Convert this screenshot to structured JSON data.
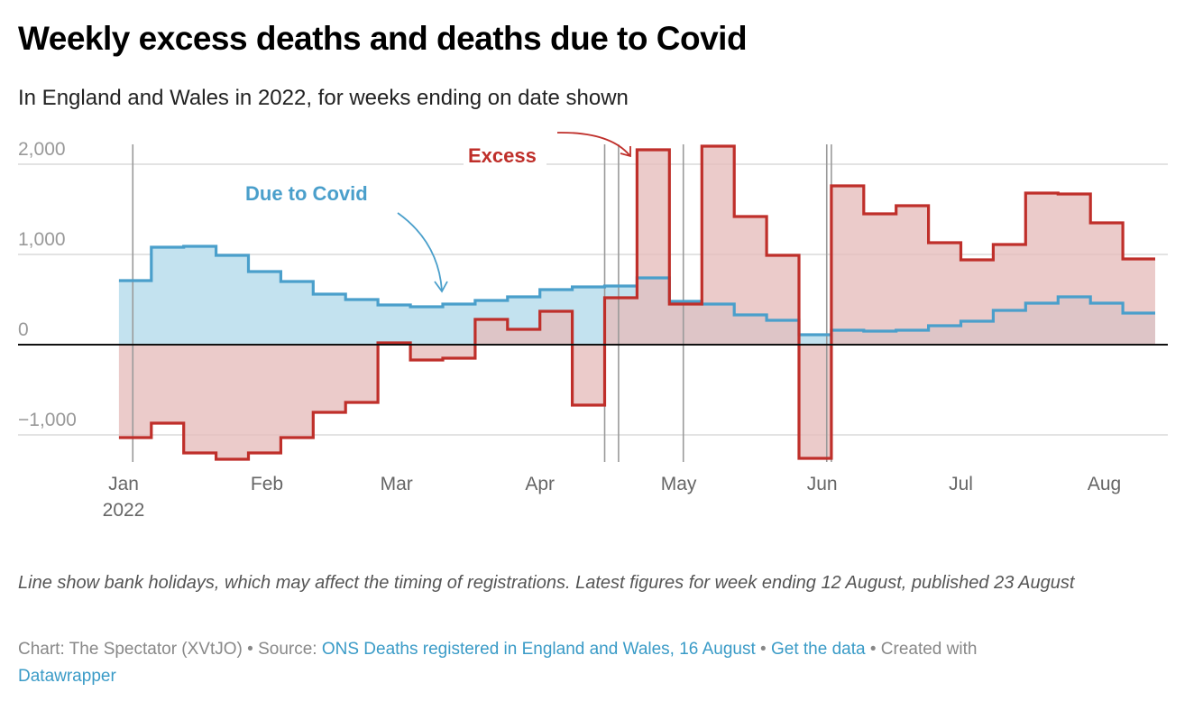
{
  "header": {
    "title": "Weekly excess deaths and deaths due to Covid",
    "subtitle": "In England and Wales in 2022, for weeks ending on date shown"
  },
  "notes": "Line show bank holidays, which may affect the timing of registrations. Latest figures for week ending 12 August, published 23 August",
  "footer": {
    "chart_prefix": "Chart: The Spectator (XVtJO)",
    "separator": " • ",
    "source_prefix": "Source: ",
    "source_link": "ONS Deaths registered in England and Wales, 16 August",
    "get_data_link": "Get the data",
    "created_with": "Created with",
    "datawrapper_link": "Datawrapper"
  },
  "chart_data": {
    "type": "area",
    "interpolation": "step-before",
    "title": "Weekly excess deaths and deaths due to Covid",
    "subtitle": "In England and Wales in 2022, for weeks ending on date shown",
    "xlabel": "",
    "ylabel": "",
    "ylim": [
      -1300,
      2200
    ],
    "grid": true,
    "yticks": [
      {
        "value": 2000,
        "label": "2,000"
      },
      {
        "value": 1000,
        "label": "1,000"
      },
      {
        "value": 0,
        "label": "0"
      },
      {
        "value": -1000,
        "label": "−1,000"
      }
    ],
    "xticks": [
      {
        "date": "2022-01-01",
        "label": "Jan",
        "sublabel": "2022"
      },
      {
        "date": "2022-02-01",
        "label": "Feb"
      },
      {
        "date": "2022-03-01",
        "label": "Mar"
      },
      {
        "date": "2022-04-01",
        "label": "Apr"
      },
      {
        "date": "2022-05-01",
        "label": "May"
      },
      {
        "date": "2022-06-01",
        "label": "Jun"
      },
      {
        "date": "2022-07-01",
        "label": "Jul"
      },
      {
        "date": "2022-08-01",
        "label": "Aug"
      }
    ],
    "x": [
      "2022-01-07",
      "2022-01-14",
      "2022-01-21",
      "2022-01-28",
      "2022-02-04",
      "2022-02-11",
      "2022-02-18",
      "2022-02-25",
      "2022-03-04",
      "2022-03-11",
      "2022-03-18",
      "2022-03-25",
      "2022-04-01",
      "2022-04-08",
      "2022-04-15",
      "2022-04-22",
      "2022-04-29",
      "2022-05-06",
      "2022-05-13",
      "2022-05-20",
      "2022-05-27",
      "2022-06-03",
      "2022-06-10",
      "2022-06-17",
      "2022-06-24",
      "2022-07-01",
      "2022-07-08",
      "2022-07-15",
      "2022-07-22",
      "2022-07-29",
      "2022-08-05",
      "2022-08-12"
    ],
    "series": [
      {
        "name": "Due to Covid",
        "color": "#4a9fcb",
        "fill": "#c3e2ef",
        "values": [
          710,
          1080,
          1090,
          990,
          810,
          700,
          560,
          500,
          440,
          420,
          450,
          490,
          530,
          610,
          640,
          650,
          740,
          480,
          450,
          330,
          270,
          110,
          160,
          150,
          160,
          210,
          260,
          380,
          460,
          530,
          460,
          350
        ]
      },
      {
        "name": "Excess",
        "color": "#bf2f2a",
        "fill": "#e6bcbb",
        "values": [
          -1030,
          -870,
          -1200,
          -1270,
          -1200,
          -1030,
          -750,
          -640,
          20,
          -170,
          -150,
          280,
          170,
          370,
          -670,
          520,
          2160,
          450,
          2200,
          1420,
          990,
          -1260,
          1760,
          1450,
          1540,
          1130,
          940,
          1110,
          1680,
          1670,
          1350,
          950
        ]
      }
    ],
    "bank_holidays": [
      "2022-01-03",
      "2022-04-15",
      "2022-04-18",
      "2022-05-02",
      "2022-06-02",
      "2022-06-03"
    ],
    "annotations": [
      {
        "text": "Due to Covid",
        "series": "Due to Covid"
      },
      {
        "text": "Excess",
        "series": "Excess"
      }
    ],
    "legend": "inline-annotations"
  }
}
